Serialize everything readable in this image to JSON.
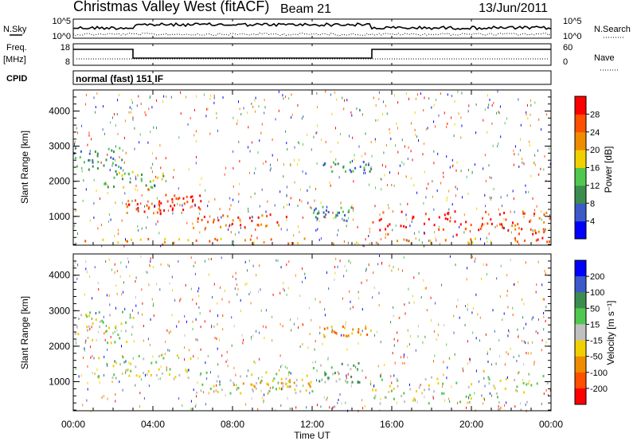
{
  "header": {
    "station": "Christmas Valley West (fitACF)",
    "beam": "Beam 21",
    "date": "13/Jun/2011",
    "cpid": "CPID",
    "mode": "normal (fast) 151 IF"
  },
  "noise_panel": {
    "label": "N.Sky",
    "right_label": "N.Search",
    "left_ticks": [
      "10^5",
      "10^0"
    ],
    "right_ticks": [
      "10^5",
      "10^0"
    ]
  },
  "freq_panel": {
    "label_line1": "Freq.",
    "label_line2": "[MHz]",
    "right_label": "Nave",
    "left_ticks": [
      "18",
      "8"
    ],
    "right_ticks": [
      "60",
      "0"
    ]
  },
  "time_axis": {
    "title": "Time UT",
    "ticks": [
      "00:00",
      "04:00",
      "08:00",
      "12:00",
      "16:00",
      "20:00",
      "00:00"
    ]
  },
  "chart_data": [
    {
      "type": "heatmap",
      "quantity": "Power",
      "colorbar_title": "Power [dB]",
      "colorbar_ticks": [
        "4",
        "8",
        "12",
        "16",
        "20",
        "24",
        "28"
      ],
      "colorbar_colors": [
        "#0000ff",
        "#3c5ac8",
        "#3c8c50",
        "#50c850",
        "#f0d000",
        "#f08c00",
        "#ff5000",
        "#ff0000"
      ],
      "ylabel": "Slant Range [km]",
      "yticks": [
        "1000",
        "2000",
        "3000",
        "4000"
      ],
      "ylim": [
        180,
        4600
      ],
      "xlim_hours": [
        0,
        24
      ],
      "echo_regions": [
        {
          "t0": 0.0,
          "t1": 2.5,
          "r0": 2300,
          "r1": 3000,
          "level": 2
        },
        {
          "t0": 1.5,
          "t1": 4.5,
          "r0": 1800,
          "r1": 2300,
          "level": 3
        },
        {
          "t0": 2.5,
          "t1": 4.5,
          "r0": 1100,
          "r1": 1500,
          "level": 6
        },
        {
          "t0": 4.5,
          "t1": 6.5,
          "r0": 1200,
          "r1": 1700,
          "level": 7
        },
        {
          "t0": 6.0,
          "t1": 11.0,
          "r0": 700,
          "r1": 1100,
          "level": 6
        },
        {
          "t0": 12.0,
          "t1": 14.0,
          "r0": 900,
          "r1": 1300,
          "level": 2
        },
        {
          "t0": 15.0,
          "t1": 22.0,
          "r0": 500,
          "r1": 1200,
          "level": 7
        },
        {
          "t0": 22.0,
          "t1": 24.0,
          "r0": 300,
          "r1": 1200,
          "level": 6
        },
        {
          "t0": 12.5,
          "t1": 15.0,
          "r0": 2300,
          "r1": 2600,
          "level": 2
        },
        {
          "t0": 0.0,
          "t1": 24.0,
          "r0": 200,
          "r1": 400,
          "level": 5
        }
      ]
    },
    {
      "type": "heatmap",
      "quantity": "Velocity",
      "colorbar_title": "Velocity [m s⁻¹]",
      "colorbar_ticks": [
        "200",
        "100",
        "50",
        "15",
        "-15",
        "-50",
        "-100",
        "-200"
      ],
      "colorbar_colors": [
        "#0000ff",
        "#3c5ac8",
        "#3c8c50",
        "#50c850",
        "#c0c0c0",
        "#f0d000",
        "#f08c00",
        "#ff5000",
        "#ff0000"
      ],
      "ylabel": "Slant Range [km]",
      "yticks": [
        "1000",
        "2000",
        "3000",
        "4000"
      ],
      "ylim": [
        180,
        4600
      ],
      "xlim_hours": [
        0,
        24
      ],
      "echo_regions": [
        {
          "t0": 0.0,
          "t1": 3.0,
          "r0": 2100,
          "r1": 3000,
          "level": 4
        },
        {
          "t0": 1.0,
          "t1": 6.0,
          "r0": 1100,
          "r1": 1800,
          "level": 4
        },
        {
          "t0": 6.0,
          "t1": 12.0,
          "r0": 700,
          "r1": 1300,
          "level": 4
        },
        {
          "t0": 8.0,
          "t1": 12.0,
          "r0": 800,
          "r1": 1100,
          "level": 5
        },
        {
          "t0": 12.0,
          "t1": 14.5,
          "r0": 1000,
          "r1": 1600,
          "level": 3
        },
        {
          "t0": 15.0,
          "t1": 24.0,
          "r0": 400,
          "r1": 1200,
          "level": 4
        },
        {
          "t0": 12.5,
          "t1": 15.0,
          "r0": 2300,
          "r1": 2600,
          "level": 6
        }
      ]
    }
  ]
}
